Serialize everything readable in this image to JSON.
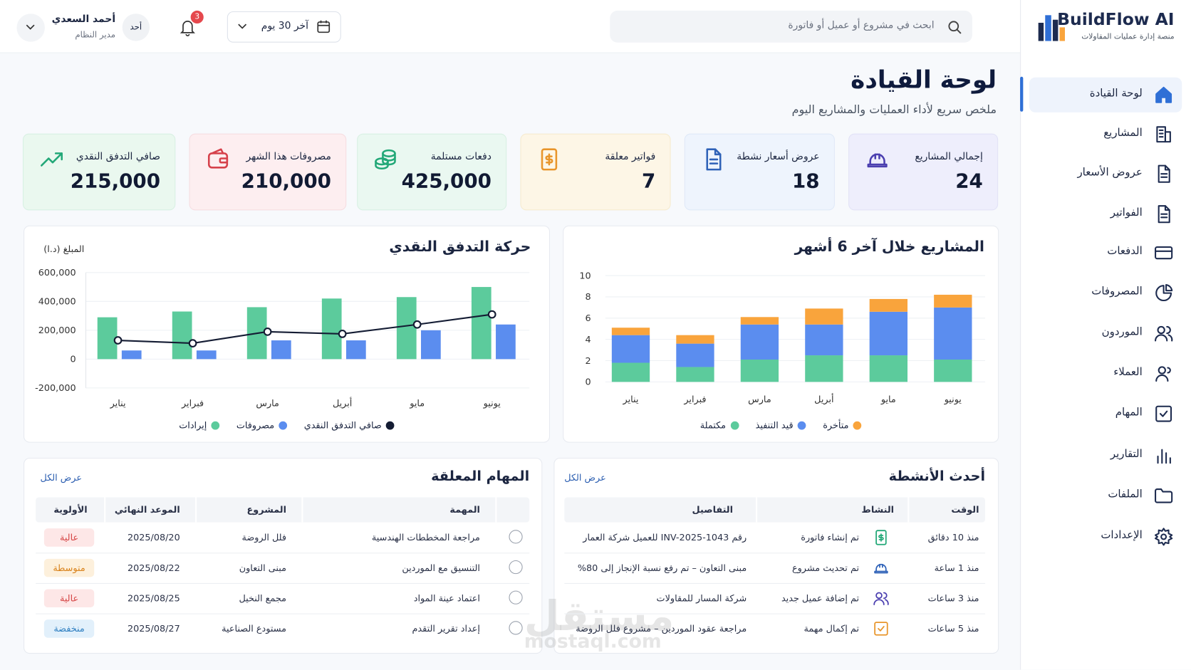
{
  "brand": {
    "name": "BuildFlow AI",
    "tagline": "منصة إدارة عمليات المقاولات"
  },
  "nav": [
    "لوحة القيادة",
    "المشاريع",
    "عروض الأسعار",
    "الفواتير",
    "الدفعات",
    "المصروفات",
    "الموردون",
    "العملاء",
    "المهام",
    "التقارير",
    "الملفات",
    "الإعدادات"
  ],
  "header": {
    "search_placeholder": "ابحث في مشروع أو عميل أو فاتورة",
    "date_range": "آخر 30 يوم",
    "notifications": "3",
    "avatar": "أحد",
    "user_name": "أحمد السعدي",
    "user_role": "مدير النظام"
  },
  "page": {
    "title": "لوحة القيادة",
    "subtitle": "ملخص سريع لأداء العمليات والمشاريع اليوم"
  },
  "kpis": [
    {
      "label": "إجمالي المشاريع",
      "value": "24"
    },
    {
      "label": "عروض أسعار نشطة",
      "value": "18"
    },
    {
      "label": "فواتير معلقة",
      "value": "7"
    },
    {
      "label": "دفعات مستلمة",
      "value": "425,000"
    },
    {
      "label": "مصروفات هذا الشهر",
      "value": "210,000"
    },
    {
      "label": "صافي التدفق النقدي",
      "value": "215,000"
    }
  ],
  "chart_data": [
    {
      "type": "stacked_bar",
      "title": "المشاريع خلال آخر 6 أشهر",
      "categories": [
        "يناير",
        "فبراير",
        "مارس",
        "أبريل",
        "مايو",
        "يونيو"
      ],
      "series": [
        {
          "name": "مكتملة",
          "color": "#5ccb9c",
          "values": [
            1.8,
            1.4,
            2.1,
            2.5,
            2.5,
            2.1
          ]
        },
        {
          "name": "قيد التنفيذ",
          "color": "#5b8def",
          "values": [
            2.6,
            2.2,
            3.3,
            2.9,
            4.1,
            4.9
          ]
        },
        {
          "name": "متأخرة",
          "color": "#f9a43c",
          "values": [
            0.7,
            0.8,
            0.7,
            1.5,
            1.2,
            1.2
          ]
        }
      ],
      "ylim": [
        0,
        10
      ],
      "yticks": [
        0,
        2,
        4,
        6,
        8,
        10
      ],
      "grid": true
    },
    {
      "type": "bar_line",
      "title": "حركة التدفق النقدي",
      "y_label": "المبلغ (د.ا)",
      "categories": [
        "يناير",
        "فبراير",
        "مارس",
        "أبريل",
        "مايو",
        "يونيو"
      ],
      "series": [
        {
          "name": "إيرادات",
          "color": "#5ccb9c",
          "values": [
            290000,
            330000,
            360000,
            420000,
            430000,
            500000
          ]
        },
        {
          "name": "مصروفات",
          "color": "#5b8def",
          "values": [
            60000,
            60000,
            130000,
            130000,
            200000,
            240000
          ]
        },
        {
          "name": "صافي التدفق النقدي",
          "color": "#141c33",
          "type": "line",
          "values": [
            130000,
            110000,
            190000,
            175000,
            240000,
            310000
          ]
        }
      ],
      "ylim": [
        -200000,
        600000
      ],
      "yticks": [
        {
          "value": -200000,
          "label": "-200,000"
        },
        0,
        {
          "value": 200000,
          "label": "200,000"
        },
        {
          "value": 400000,
          "label": "400,000"
        },
        {
          "value": 600000,
          "label": "600,000"
        }
      ],
      "grid": true
    }
  ],
  "activities": {
    "title": "أحدث الأنشطة",
    "view_all": "عرض الكل",
    "columns": [
      "الوقت",
      "النشاط",
      "التفاصيل"
    ],
    "rows": [
      [
        "منذ 10 دقائق",
        "تم إنشاء فاتورة",
        "رقم INV-2025-1043 للعميل شركة العمار"
      ],
      [
        "منذ 1 ساعة",
        "تم تحديث مشروع",
        "مبنى التعاون – تم رفع نسبة الإنجاز إلى 80%"
      ],
      [
        "منذ 3 ساعات",
        "تم إضافة عميل جديد",
        "شركة المسار للمقاولات"
      ],
      [
        "منذ 5 ساعات",
        "تم إكمال مهمة",
        "مراجعة عقود الموردين – مشروع فلل الروضة"
      ]
    ]
  },
  "tasks": {
    "title": "المهام المعلقة",
    "view_all": "عرض الكل",
    "columns": [
      "المهمة",
      "المشروع",
      "الموعد النهائي",
      "الأولوية"
    ],
    "rows": [
      [
        "مراجعة المخططات الهندسية",
        "فلل الروضة",
        "2025/08/20",
        "عالية"
      ],
      [
        "التنسيق مع الموردين",
        "مبنى التعاون",
        "2025/08/22",
        "متوسطة"
      ],
      [
        "اعتماد عينة المواد",
        "مجمع النخيل",
        "2025/08/25",
        "عالية"
      ],
      [
        "إعداد تقرير التقدم",
        "مستودع الصناعية",
        "2025/08/27",
        "منخفضة"
      ]
    ],
    "priority_colors": [
      {
        "bg": "#fde7e7",
        "fg": "#d64545"
      },
      {
        "bg": "#fdf0dc",
        "fg": "#d9821a"
      },
      {
        "bg": "#fde7e7",
        "fg": "#d64545"
      },
      {
        "bg": "#e2f0fb",
        "fg": "#2f7fc1"
      }
    ]
  },
  "watermark": {
    "ar": "مستقل",
    "en": "mostaql.com"
  }
}
